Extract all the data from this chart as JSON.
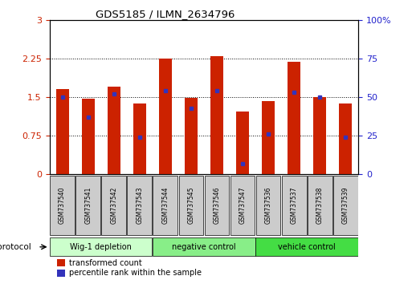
{
  "title": "GDS5185 / ILMN_2634796",
  "samples": [
    "GSM737540",
    "GSM737541",
    "GSM737542",
    "GSM737543",
    "GSM737544",
    "GSM737545",
    "GSM737546",
    "GSM737547",
    "GSM737536",
    "GSM737537",
    "GSM737538",
    "GSM737539"
  ],
  "transformed_counts": [
    1.65,
    1.47,
    1.7,
    1.38,
    2.25,
    1.48,
    2.3,
    1.22,
    1.42,
    2.18,
    1.5,
    1.38
  ],
  "percentile_ranks_pct": [
    50,
    37,
    52,
    24,
    54,
    43,
    54,
    7,
    26,
    53,
    50,
    24
  ],
  "bar_color": "#cc2200",
  "dot_color": "#3333bb",
  "ylim_left": [
    0,
    3
  ],
  "ylim_right": [
    0,
    100
  ],
  "yticks_left": [
    0,
    0.75,
    1.5,
    2.25,
    3
  ],
  "yticks_right": [
    0,
    25,
    50,
    75,
    100
  ],
  "group_boundaries": [
    [
      0,
      4,
      "Wig-1 depletion",
      "#ccffcc"
    ],
    [
      4,
      8,
      "negative control",
      "#88ee88"
    ],
    [
      8,
      12,
      "vehicle control",
      "#44dd44"
    ]
  ],
  "protocol_label": "protocol",
  "legend_items": [
    {
      "color": "#cc2200",
      "label": "transformed count"
    },
    {
      "color": "#3333bb",
      "label": "percentile rank within the sample"
    }
  ],
  "bar_width": 0.5,
  "tick_color_left": "#cc2200",
  "tick_color_right": "#2222cc",
  "sample_box_color": "#cccccc",
  "grid_linestyle": ":",
  "grid_color": "black",
  "grid_linewidth": 0.7
}
